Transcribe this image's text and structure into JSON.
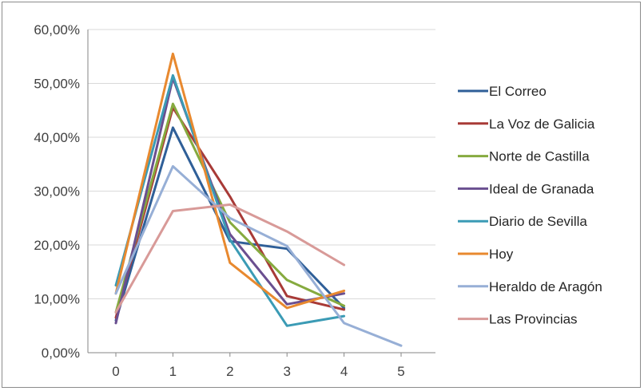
{
  "chart_data": {
    "type": "line",
    "title": "",
    "xlabel": "",
    "ylabel": "",
    "x": [
      0,
      1,
      2,
      3,
      4,
      5
    ],
    "x_tick_labels": [
      "0",
      "1",
      "2",
      "3",
      "4",
      "5"
    ],
    "ylim": [
      0,
      60
    ],
    "y_ticks": [
      0,
      10,
      20,
      30,
      40,
      50,
      60
    ],
    "y_tick_labels": [
      "0,00%",
      "10,00%",
      "20,00%",
      "30,00%",
      "40,00%",
      "50,00%",
      "60,00%"
    ],
    "grid": "horizontal",
    "legend_position": "right",
    "series": [
      {
        "name": "El Correo",
        "color": "#2f5f98",
        "values": [
          6.0,
          41.8,
          20.7,
          19.3,
          8.3,
          null
        ]
      },
      {
        "name": "La Voz de Galicia",
        "color": "#a83a37",
        "values": [
          6.5,
          45.5,
          29.0,
          10.5,
          8.0,
          null
        ]
      },
      {
        "name": "Norte de Castilla",
        "color": "#86aa3f",
        "values": [
          7.5,
          46.2,
          24.2,
          13.5,
          8.7,
          null
        ]
      },
      {
        "name": "Ideal de Granada",
        "color": "#6a4f90",
        "values": [
          5.5,
          51.0,
          22.0,
          9.0,
          11.0,
          null
        ]
      },
      {
        "name": "Diario de Sevilla",
        "color": "#3b9bb5",
        "values": [
          12.5,
          51.5,
          21.0,
          5.0,
          6.8,
          null
        ]
      },
      {
        "name": "Hoy",
        "color": "#e8892f",
        "values": [
          11.0,
          55.5,
          16.7,
          8.3,
          11.5,
          null
        ]
      },
      {
        "name": "Heraldo de Aragón",
        "color": "#97afd6",
        "values": [
          11.0,
          34.6,
          25.0,
          19.8,
          5.5,
          1.3
        ]
      },
      {
        "name": "Las Provincias",
        "color": "#d89a98",
        "values": [
          7.5,
          26.3,
          27.5,
          22.5,
          16.3,
          null
        ]
      }
    ]
  }
}
